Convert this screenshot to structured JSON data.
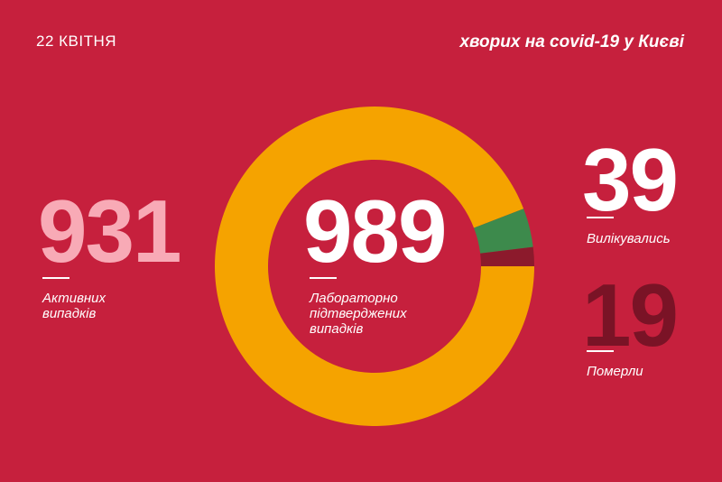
{
  "chart_data": {
    "type": "pie",
    "date": "22 КВІТНЯ",
    "title": "хворих на covid-19 у Києві",
    "total": 989,
    "total_label": "Лабораторно підтверджених випадків",
    "categories": [
      "Активних випадків",
      "Вилікувались",
      "Померли"
    ],
    "values": [
      931,
      39,
      19
    ],
    "colors": [
      "#f5a300",
      "#3d8a4c",
      "#8c1a2c"
    ]
  }
}
